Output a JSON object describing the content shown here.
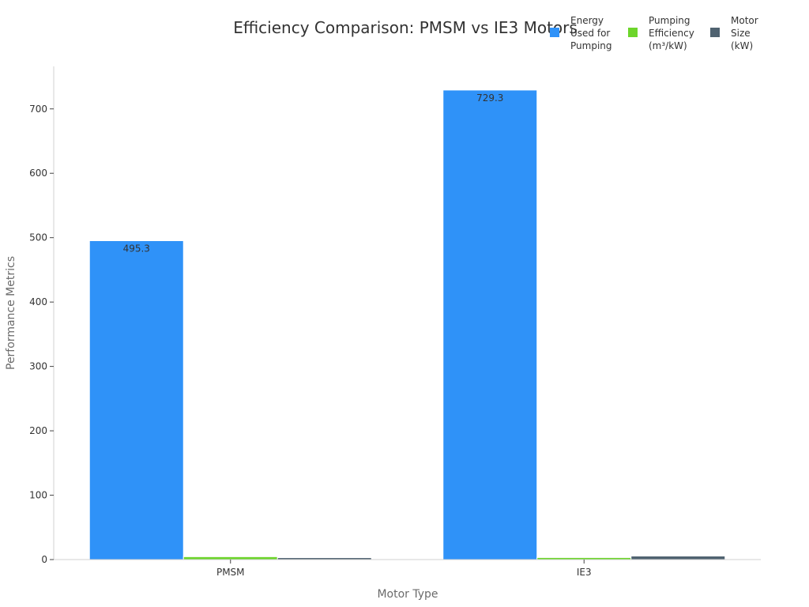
{
  "chart_data": {
    "type": "bar",
    "title": "Efficiency Comparison: PMSM vs IE3 Motors",
    "xlabel": "Motor Type",
    "ylabel": "Performance Metrics",
    "categories": [
      "PMSM",
      "IE3"
    ],
    "series": [
      {
        "name": "Energy Used for Pumping",
        "values": [
          495.3,
          729.3
        ],
        "color": "#2f92f8"
      },
      {
        "name": "Pumping Efficiency (m³/kW)",
        "values": [
          4.5,
          3.2
        ],
        "color": "#6dd52b"
      },
      {
        "name": "Motor Size (kW)",
        "values": [
          3.0,
          5.5
        ],
        "color": "#4f6270"
      }
    ],
    "data_labels": [
      "495.3",
      "729.3"
    ],
    "ylim": [
      0,
      766
    ],
    "yticks": [
      0,
      100,
      200,
      300,
      400,
      500,
      600,
      700
    ],
    "legend_position": "top-right",
    "grid": false
  }
}
